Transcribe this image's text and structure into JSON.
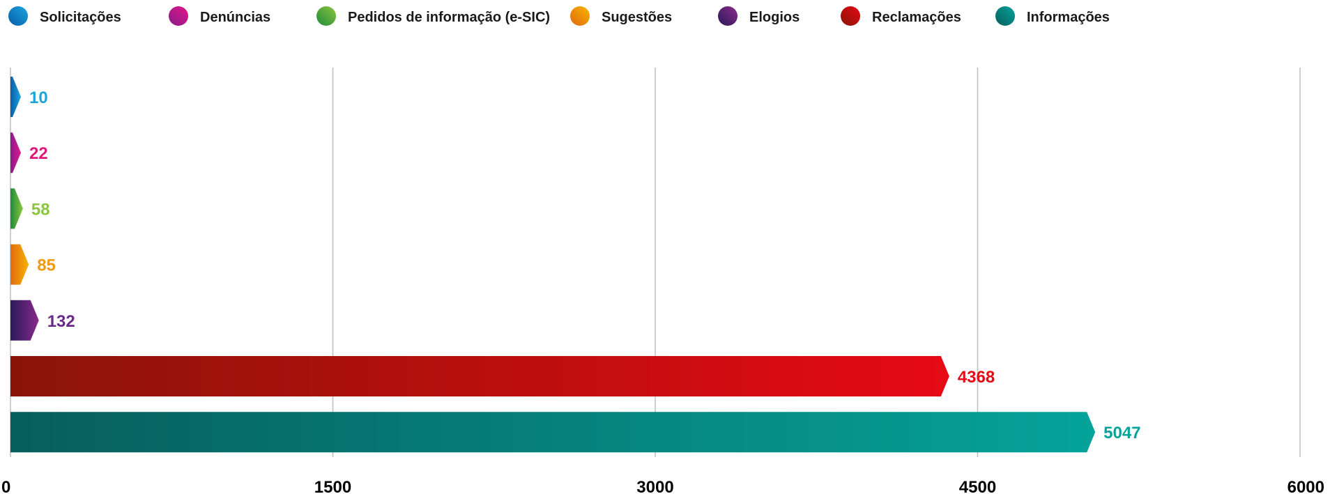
{
  "chart_data": {
    "type": "bar",
    "orientation": "horizontal",
    "categories": [
      "Solicitações",
      "Denúncias",
      "Pedidos de informação (e-SIC)",
      "Sugestões",
      "Elogios",
      "Reclamações",
      "Informações"
    ],
    "values": [
      10,
      22,
      58,
      85,
      132,
      4368,
      5047
    ],
    "xlim": [
      0,
      6000
    ],
    "xticks": [
      "0",
      "1500",
      "3000",
      "4500",
      "6000"
    ],
    "grid": true,
    "legend_position": "top",
    "colors": [
      {
        "from": "#0a5ca8",
        "to": "#1ba6e0",
        "label": "#1ba6d8"
      },
      {
        "from": "#8a1a8a",
        "to": "#e0188a",
        "label": "#e0187a"
      },
      {
        "from": "#1f8a3a",
        "to": "#8cc63f",
        "label": "#8cc63f"
      },
      {
        "from": "#e06a10",
        "to": "#f8b400",
        "label": "#f09a10"
      },
      {
        "from": "#2a1a5a",
        "to": "#8a2a8a",
        "label": "#6a2a8a"
      },
      {
        "from": "#8a1408",
        "to": "#e60a14",
        "label": "#e60a14"
      },
      {
        "from": "#075e5c",
        "to": "#05a39a",
        "label": "#05a39a"
      }
    ]
  }
}
